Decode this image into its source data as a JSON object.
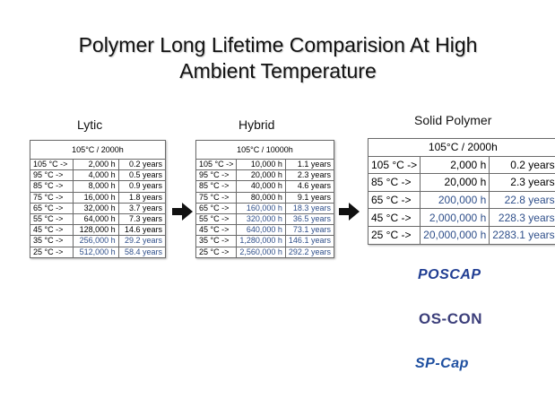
{
  "title": {
    "line1": "Polymer Long Lifetime Comparision At High",
    "line2": "Ambient Temperature"
  },
  "lytic": {
    "label": "Lytic",
    "header": "105°C / 2000h",
    "rows": [
      {
        "temp": "105 °C ->",
        "hours": "2,000 h",
        "years": "0.2 years"
      },
      {
        "temp": "95 °C ->",
        "hours": "4,000 h",
        "years": "0.5 years"
      },
      {
        "temp": "85 °C ->",
        "hours": "8,000 h",
        "years": "0.9 years"
      },
      {
        "temp": "75 °C ->",
        "hours": "16,000 h",
        "years": "1.8 years"
      },
      {
        "temp": "65 °C ->",
        "hours": "32,000 h",
        "years": "3.7 years"
      },
      {
        "temp": "55 °C ->",
        "hours": "64,000 h",
        "years": "7.3 years"
      },
      {
        "temp": "45 °C ->",
        "hours": "128,000 h",
        "years": "14.6 years"
      },
      {
        "temp": "35 °C ->",
        "hours": "256,000 h",
        "years": "29.2 years"
      },
      {
        "temp": "25 °C ->",
        "hours": "512,000 h",
        "years": "58.4 years"
      }
    ]
  },
  "hybrid": {
    "label": "Hybrid",
    "header": "105°C / 10000h",
    "rows": [
      {
        "temp": "105 °C ->",
        "hours": "10,000 h",
        "years": "1.1 years"
      },
      {
        "temp": "95 °C ->",
        "hours": "20,000 h",
        "years": "2.3 years"
      },
      {
        "temp": "85 °C ->",
        "hours": "40,000 h",
        "years": "4.6 years"
      },
      {
        "temp": "75 °C ->",
        "hours": "80,000 h",
        "years": "9.1 years"
      },
      {
        "temp": "65 °C ->",
        "hours": "160,000 h",
        "years": "18.3 years"
      },
      {
        "temp": "55 °C ->",
        "hours": "320,000 h",
        "years": "36.5 years"
      },
      {
        "temp": "45 °C ->",
        "hours": "640,000 h",
        "years": "73.1 years"
      },
      {
        "temp": "35 °C ->",
        "hours": "1,280,000 h",
        "years": "146.1 years"
      },
      {
        "temp": "25 °C ->",
        "hours": "2,560,000 h",
        "years": "292.2 years"
      }
    ]
  },
  "solid": {
    "label": "Solid Polymer",
    "header": "105°C / 2000h",
    "rows": [
      {
        "temp": "105 °C ->",
        "hours": "2,000 h",
        "years": "0.2 years"
      },
      {
        "temp": "85 °C ->",
        "hours": "20,000 h",
        "years": "2.3 years"
      },
      {
        "temp": "65 °C ->",
        "hours": "200,000 h",
        "years": "22.8 years"
      },
      {
        "temp": "45 °C ->",
        "hours": "2,000,000 h",
        "years": "228.3 years"
      },
      {
        "temp": "25 °C ->",
        "hours": "20,000,000 h",
        "years": "2283.1 years"
      }
    ]
  },
  "logos": {
    "poscap": "POSCAP",
    "oscon": "OS-CON",
    "spcap": "SP-Cap"
  },
  "colors": {
    "highlight_text": "#2f4f8a",
    "arrow": "#111111"
  }
}
